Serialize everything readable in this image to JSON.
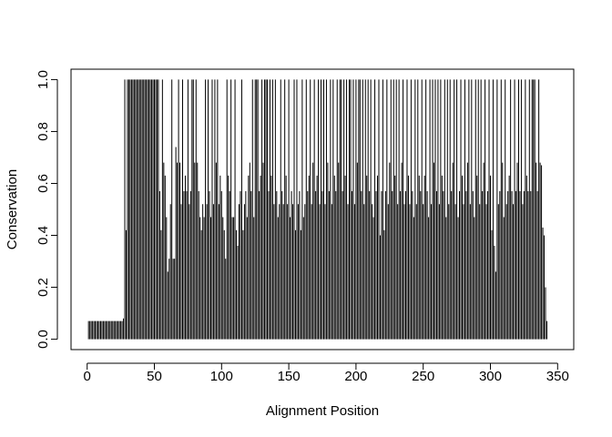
{
  "chart_data": {
    "type": "bar",
    "style": "histogram-lines",
    "title": "",
    "xlabel": "Alignment Position",
    "ylabel": "Conservation",
    "xlim": [
      -12,
      362
    ],
    "ylim": [
      -0.04,
      1.04
    ],
    "x_ticks": [
      0,
      50,
      100,
      150,
      200,
      250,
      300,
      350
    ],
    "y_ticks": [
      0.0,
      0.2,
      0.4,
      0.6,
      0.8,
      1.0
    ],
    "y_tick_labels": [
      "0.0",
      "0.2",
      "0.4",
      "0.6",
      "0.8",
      "1.0"
    ],
    "x_start": 1,
    "values": [
      0.07,
      0.07,
      0.07,
      0.07,
      0.07,
      0.07,
      0.07,
      0.07,
      0.07,
      0.07,
      0.07,
      0.07,
      0.07,
      0.07,
      0.07,
      0.07,
      0.07,
      0.07,
      0.07,
      0.07,
      0.07,
      0.07,
      0.07,
      0.07,
      0.07,
      0.07,
      0.08,
      1.0,
      0.42,
      1.0,
      1.0,
      1.0,
      1.0,
      1.0,
      1.0,
      1.0,
      1.0,
      1.0,
      1.0,
      1.0,
      1.0,
      1.0,
      1.0,
      1.0,
      1.0,
      1.0,
      1.0,
      1.0,
      1.0,
      1.0,
      1.0,
      1.0,
      1.0,
      0.57,
      0.42,
      1.0,
      0.68,
      0.63,
      0.47,
      0.26,
      0.31,
      0.52,
      1.0,
      0.31,
      0.31,
      0.74,
      0.68,
      1.0,
      0.68,
      0.52,
      1.0,
      0.57,
      0.63,
      0.57,
      1.0,
      0.52,
      0.57,
      1.0,
      1.0,
      0.68,
      1.0,
      0.68,
      0.57,
      0.47,
      0.42,
      0.52,
      0.47,
      1.0,
      0.52,
      1.0,
      0.57,
      0.47,
      1.0,
      0.52,
      1.0,
      0.68,
      1.0,
      0.52,
      0.63,
      0.57,
      0.47,
      0.42,
      0.31,
      1.0,
      0.63,
      0.57,
      1.0,
      0.47,
      0.47,
      1.0,
      0.42,
      0.36,
      0.52,
      0.57,
      1.0,
      0.42,
      0.52,
      0.57,
      0.47,
      0.63,
      0.68,
      0.57,
      1.0,
      0.47,
      1.0,
      1.0,
      1.0,
      0.57,
      0.63,
      1.0,
      0.68,
      1.0,
      1.0,
      1.0,
      0.57,
      1.0,
      0.63,
      1.0,
      0.52,
      1.0,
      0.57,
      0.47,
      0.52,
      1.0,
      0.57,
      0.52,
      1.0,
      0.63,
      0.52,
      1.0,
      0.47,
      0.57,
      0.52,
      1.0,
      0.42,
      1.0,
      0.52,
      0.57,
      0.42,
      1.0,
      0.47,
      0.52,
      1.0,
      0.57,
      0.63,
      1.0,
      0.52,
      0.68,
      1.0,
      0.57,
      0.63,
      1.0,
      0.52,
      1.0,
      0.57,
      1.0,
      0.52,
      1.0,
      0.68,
      0.57,
      1.0,
      0.52,
      1.0,
      0.63,
      0.57,
      1.0,
      0.68,
      1.0,
      1.0,
      0.57,
      1.0,
      0.63,
      1.0,
      0.52,
      1.0,
      1.0,
      0.57,
      1.0,
      0.52,
      1.0,
      0.68,
      1.0,
      1.0,
      0.57,
      1.0,
      0.52,
      1.0,
      0.63,
      1.0,
      0.57,
      1.0,
      0.52,
      0.47,
      1.0,
      0.57,
      0.63,
      1.0,
      0.4,
      0.57,
      1.0,
      0.42,
      0.57,
      1.0,
      0.52,
      0.68,
      1.0,
      0.57,
      1.0,
      0.63,
      1.0,
      0.52,
      1.0,
      0.57,
      0.68,
      1.0,
      0.52,
      0.57,
      1.0,
      0.63,
      0.52,
      1.0,
      0.57,
      0.47,
      1.0,
      0.52,
      1.0,
      0.63,
      0.57,
      1.0,
      0.52,
      0.63,
      1.0,
      0.57,
      0.47,
      1.0,
      0.52,
      1.0,
      0.68,
      1.0,
      0.57,
      1.0,
      0.52,
      1.0,
      0.63,
      0.57,
      1.0,
      0.47,
      1.0,
      0.52,
      1.0,
      0.57,
      0.68,
      1.0,
      0.52,
      1.0,
      0.47,
      0.57,
      1.0,
      0.63,
      0.52,
      1.0,
      0.57,
      0.68,
      1.0,
      0.52,
      1.0,
      0.57,
      0.47,
      1.0,
      0.63,
      1.0,
      0.52,
      1.0,
      0.57,
      0.68,
      1.0,
      0.52,
      0.57,
      1.0,
      0.63,
      0.42,
      1.0,
      0.36,
      0.26,
      1.0,
      0.52,
      0.57,
      1.0,
      0.68,
      0.47,
      1.0,
      0.52,
      0.57,
      0.63,
      1.0,
      0.57,
      0.52,
      1.0,
      0.57,
      0.68,
      1.0,
      0.57,
      1.0,
      0.52,
      0.57,
      1.0,
      0.63,
      0.57,
      1.0,
      0.57,
      1.0,
      1.0,
      1.0,
      0.68,
      0.57,
      1.0,
      0.68,
      0.67,
      0.43,
      0.4,
      0.2,
      0.07,
      0.0,
      0.0,
      0.0
    ]
  }
}
